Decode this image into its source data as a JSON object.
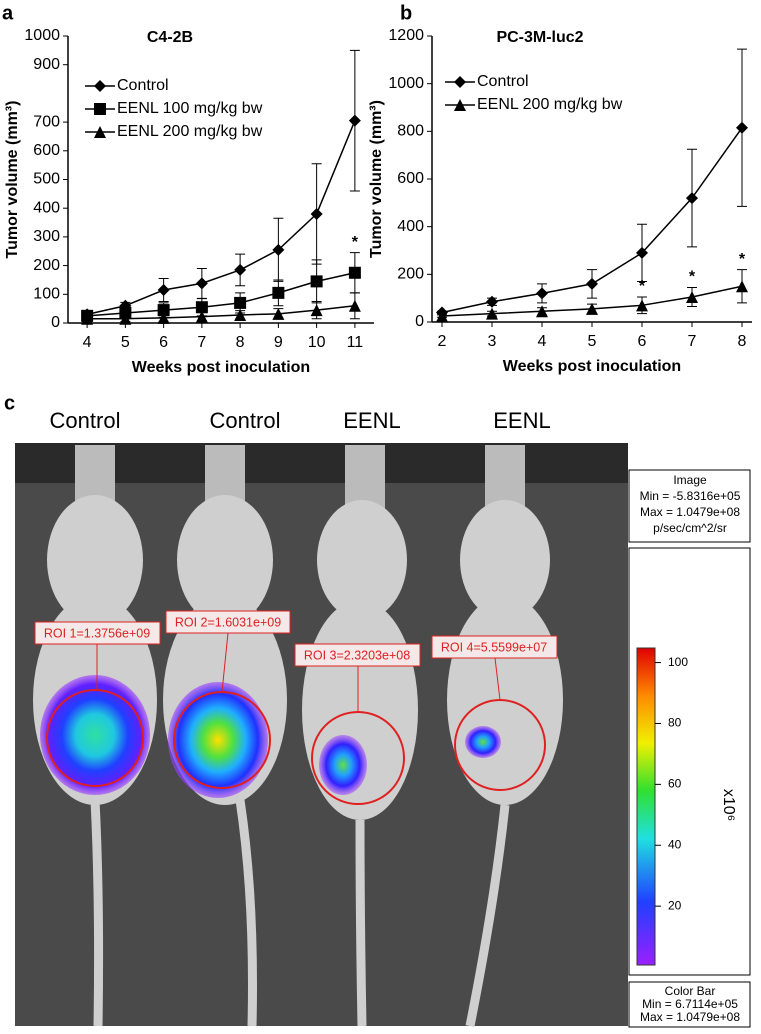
{
  "chart_data": [
    {
      "type": "line",
      "panel": "a",
      "title": "C4-2B",
      "xlabel": "Weeks post inoculation",
      "ylabel": "Tumor volume (mm³)",
      "x": [
        4,
        5,
        6,
        7,
        8,
        9,
        10,
        11
      ],
      "xlim": [
        3.5,
        11.5
      ],
      "xticks": [
        4,
        5,
        6,
        7,
        8,
        9,
        10,
        11
      ],
      "ylim": [
        0,
        1000
      ],
      "yticks": [
        0,
        100,
        200,
        300,
        400,
        500,
        600,
        700,
        900,
        1000
      ],
      "series": [
        {
          "name": "Control",
          "color": "#000000",
          "marker": "diamond",
          "values": [
            30,
            60,
            115,
            138,
            185,
            255,
            380,
            705
          ],
          "errors": [
            8,
            12,
            40,
            52,
            55,
            110,
            175,
            245
          ]
        },
        {
          "name": "EENL 100 mg/kg bw",
          "color": "#000000",
          "marker": "square",
          "values": [
            25,
            35,
            45,
            55,
            70,
            105,
            145,
            175
          ],
          "errors": [
            15,
            20,
            25,
            30,
            35,
            45,
            75,
            70
          ]
        },
        {
          "name": "EENL 200 mg/kg bw",
          "color": "#000000",
          "marker": "triangle",
          "values": [
            15,
            15,
            18,
            22,
            28,
            32,
            45,
            60
          ],
          "errors": [
            10,
            10,
            12,
            14,
            15,
            18,
            30,
            45
          ]
        }
      ],
      "annotations": [
        {
          "text": "*",
          "x": 11,
          "series": 1
        }
      ]
    },
    {
      "type": "line",
      "panel": "b",
      "title": "PC-3M-luc2",
      "xlabel": "Weeks post inoculation",
      "ylabel": "Tumor volume (mm³)",
      "x": [
        2,
        3,
        4,
        5,
        6,
        7,
        8
      ],
      "xlim": [
        1.8,
        8.2
      ],
      "xticks": [
        2,
        3,
        4,
        5,
        6,
        7,
        8
      ],
      "ylim": [
        0,
        1200
      ],
      "yticks": [
        0,
        200,
        400,
        600,
        800,
        1000,
        1200
      ],
      "series": [
        {
          "name": "Control",
          "color": "#000000",
          "marker": "diamond",
          "values": [
            40,
            85,
            120,
            160,
            290,
            520,
            815
          ],
          "errors": [
            5,
            15,
            40,
            60,
            120,
            205,
            330
          ]
        },
        {
          "name": "EENL 200 mg/kg bw",
          "color": "#000000",
          "marker": "triangle",
          "values": [
            25,
            35,
            45,
            55,
            70,
            105,
            150
          ],
          "errors": [
            5,
            10,
            15,
            20,
            35,
            40,
            70
          ]
        }
      ],
      "annotations": [
        {
          "text": "*",
          "x": 6,
          "series": 1
        },
        {
          "text": "*",
          "x": 7,
          "series": 1
        },
        {
          "text": "*",
          "x": 8,
          "series": 1
        }
      ]
    }
  ],
  "panel_c": {
    "label": "c",
    "columns": [
      "Control",
      "Control",
      "EENL",
      "EENL"
    ],
    "roi_labels": [
      "ROI 1=1.3756e+09",
      "ROI 2=1.6031e+09",
      "ROI 3=2.3203e+08",
      "ROI 4=5.5599e+07"
    ],
    "image_box": [
      "Image",
      "Min = -5.8316e+05",
      "Max = 1.0479e+08",
      "p/sec/cm^2/sr"
    ],
    "colorbar": {
      "unit": "x10⁶",
      "lim": [
        0.67,
        104.79
      ],
      "ticks": [
        20,
        40,
        60,
        80,
        100
      ]
    },
    "colorbar_box": [
      "Color Bar",
      "Min = 6.7114e+05",
      "Max = 1.0479e+08"
    ]
  }
}
